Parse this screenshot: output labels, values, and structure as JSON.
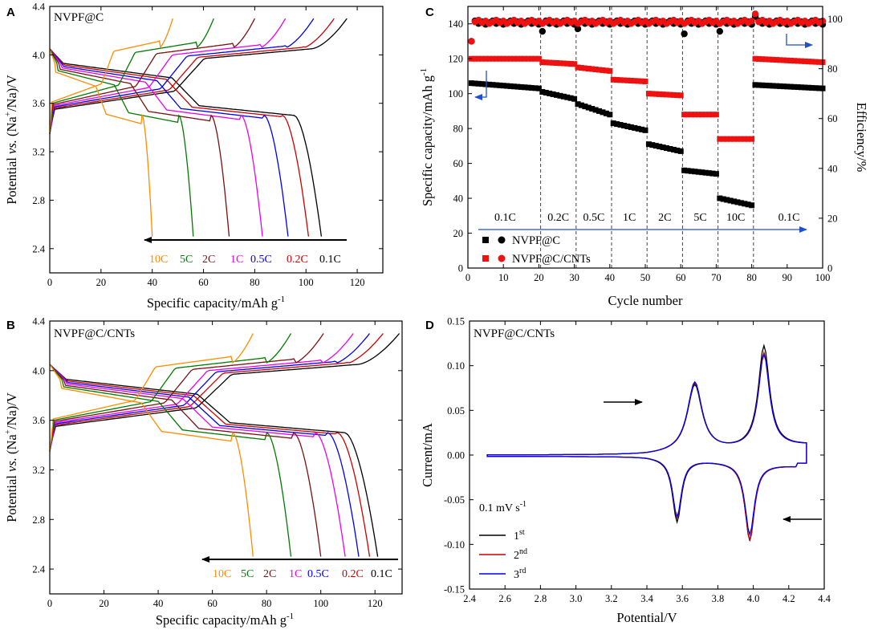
{
  "panels": {
    "A": {
      "label": "A",
      "sample": "NVPF@C",
      "xlabel_pre": "Specific capacity/mAh g",
      "xlabel_sup": "-1",
      "ylabel_pre": "Potential ",
      "ylabel_vs": "vs.",
      "ylabel_mid": " (Na",
      "ylabel_sup": "+",
      "ylabel_post": "/Na)/V"
    },
    "B": {
      "label": "B",
      "sample": "NVPF@C/CNTs",
      "xlabel_pre": "Specific capacity/mAh g",
      "xlabel_sup": "-1",
      "ylabel_pre": "Potential ",
      "ylabel_vs": "vs.",
      "ylabel_mid": " (Na",
      "ylabel_sup": "+",
      "ylabel_post": "/Na)/V"
    },
    "C": {
      "label": "C",
      "xlabel": "Cycle number",
      "ylabel_pre": "Specific capacity/mAh g",
      "ylabel_sup": "-1",
      "ylabel2": "Efficiency/%",
      "legend": [
        "NVPF@C",
        "NVPF@C/CNTs"
      ]
    },
    "D": {
      "label": "D",
      "sample": "NVPF@C/CNTs",
      "xlabel": "Potential/V",
      "ylabel": "Current/mA",
      "scan_rate_pre": "0.1 mV s",
      "scan_rate_sup": "-1",
      "legend": [
        {
          "n": "1",
          "sup": "st"
        },
        {
          "n": "2",
          "sup": "nd"
        },
        {
          "n": "3",
          "sup": "rd"
        }
      ]
    }
  },
  "colors": {
    "0.1C": "#000000",
    "0.2C": "#cc0000",
    "0.5C": "#0000ee",
    "1C": "#ee00ee",
    "2C": "#7a1010",
    "5C": "#007a00",
    "10C": "#ff8c00",
    "arrow_blue": "#1f4fd0",
    "red": "#ee1111"
  },
  "chart_data": [
    {
      "id": "A",
      "type": "line",
      "title": "NVPF@C",
      "xlabel": "Specific capacity/mAh g-1",
      "ylabel": "Potential vs. (Na+/Na)/V",
      "xlim": [
        0,
        130
      ],
      "ylim": [
        2.2,
        4.4
      ],
      "xticks": [
        0,
        20,
        40,
        60,
        80,
        100,
        120
      ],
      "yticks": [
        2.4,
        2.8,
        3.2,
        3.6,
        4.0,
        4.4
      ],
      "rate_labels": [
        "10C",
        "5C",
        "2C",
        "1C",
        "0.5C",
        "0.2C",
        "0.1C"
      ],
      "series": [
        {
          "name": "0.1C",
          "charge_cap": 116,
          "discharge_cap": 106
        },
        {
          "name": "0.2C",
          "charge_cap": 111,
          "discharge_cap": 101
        },
        {
          "name": "0.5C",
          "charge_cap": 103,
          "discharge_cap": 93
        },
        {
          "name": "1C",
          "charge_cap": 92,
          "discharge_cap": 83
        },
        {
          "name": "2C",
          "charge_cap": 80,
          "discharge_cap": 70
        },
        {
          "name": "5C",
          "charge_cap": 64,
          "discharge_cap": 56
        },
        {
          "name": "10C",
          "charge_cap": 48,
          "discharge_cap": 40
        }
      ]
    },
    {
      "id": "B",
      "type": "line",
      "title": "NVPF@C/CNTs",
      "xlabel": "Specific capacity/mAh g-1",
      "ylabel": "Potential vs. (Na+/Na)/V",
      "xlim": [
        0,
        130
      ],
      "ylim": [
        2.2,
        4.4
      ],
      "xticks": [
        0,
        20,
        40,
        60,
        80,
        100,
        120
      ],
      "yticks": [
        2.4,
        2.8,
        3.2,
        3.6,
        4.0,
        4.4
      ],
      "rate_labels": [
        "10C",
        "5C",
        "2C",
        "1C",
        "0.5C",
        "0.2C",
        "0.1C"
      ],
      "series": [
        {
          "name": "0.1C",
          "charge_cap": 129,
          "discharge_cap": 121
        },
        {
          "name": "0.2C",
          "charge_cap": 123,
          "discharge_cap": 118
        },
        {
          "name": "0.5C",
          "charge_cap": 118,
          "discharge_cap": 114
        },
        {
          "name": "1C",
          "charge_cap": 112,
          "discharge_cap": 109
        },
        {
          "name": "2C",
          "charge_cap": 101,
          "discharge_cap": 100
        },
        {
          "name": "5C",
          "charge_cap": 89,
          "discharge_cap": 89
        },
        {
          "name": "10C",
          "charge_cap": 75,
          "discharge_cap": 75
        }
      ]
    },
    {
      "id": "C",
      "type": "scatter",
      "xlabel": "Cycle number",
      "ylabel": "Specific capacity/mAh g-1",
      "ylabel2": "Efficiency/%",
      "xlim": [
        0,
        100
      ],
      "ylim": [
        0,
        150
      ],
      "y2lim": [
        0,
        105
      ],
      "xticks": [
        0,
        10,
        20,
        30,
        40,
        50,
        60,
        70,
        80,
        90,
        100
      ],
      "yticks": [
        0,
        20,
        40,
        60,
        80,
        100,
        120,
        140
      ],
      "y2ticks": [
        0,
        20,
        40,
        60,
        80,
        100
      ],
      "segments": [
        {
          "label": "0.1C",
          "start": 1,
          "end": 20
        },
        {
          "label": "0.2C",
          "start": 21,
          "end": 30
        },
        {
          "label": "0.5C",
          "start": 31,
          "end": 40
        },
        {
          "label": "1C",
          "start": 41,
          "end": 50
        },
        {
          "label": "2C",
          "start": 51,
          "end": 60
        },
        {
          "label": "5C",
          "start": 61,
          "end": 70
        },
        {
          "label": "10C",
          "start": 71,
          "end": 80
        },
        {
          "label": "0.1C",
          "start": 81,
          "end": 100
        }
      ],
      "series": [
        {
          "name": "NVPF@C capacity",
          "axis": "left",
          "marker": "square",
          "color": "#000000",
          "seg_capacity_start": [
            106,
            101,
            94,
            83,
            71,
            56,
            40,
            105
          ],
          "seg_capacity_end": [
            103,
            97,
            88,
            79,
            67,
            54,
            36,
            103
          ]
        },
        {
          "name": "NVPF@C/CNTs capacity",
          "axis": "left",
          "marker": "square",
          "color": "#ee1111",
          "seg_capacity_start": [
            120,
            118,
            115,
            108,
            100,
            88,
            74,
            120
          ],
          "seg_capacity_end": [
            120,
            117,
            113,
            107,
            99,
            88,
            74,
            118
          ]
        },
        {
          "name": "NVPF@C efficiency",
          "axis": "right",
          "marker": "circle",
          "color": "#000000",
          "typical": 98.5,
          "first": 91,
          "dips": [
            [
              21,
              95
            ],
            [
              31,
              96
            ],
            [
              61,
              94
            ],
            [
              71,
              95
            ],
            [
              81,
              101
            ]
          ]
        },
        {
          "name": "NVPF@C/CNTs efficiency",
          "axis": "right",
          "marker": "circle",
          "color": "#ee1111",
          "typical": 98.8,
          "first": 91,
          "dips": [
            [
              81,
              102
            ]
          ]
        }
      ]
    },
    {
      "id": "D",
      "type": "line",
      "title": "NVPF@C/CNTs",
      "xlabel": "Potential/V",
      "ylabel": "Current/mA",
      "xlim": [
        2.4,
        4.4
      ],
      "ylim": [
        -0.15,
        0.15
      ],
      "xticks": [
        2.4,
        2.6,
        2.8,
        3.0,
        3.2,
        3.4,
        3.6,
        3.8,
        4.0,
        4.2,
        4.4
      ],
      "yticks": [
        -0.15,
        -0.1,
        -0.05,
        0.0,
        0.05,
        0.1,
        0.15
      ],
      "scan_rate": "0.1 mV s-1",
      "series": [
        {
          "name": "1st",
          "color": "#000000",
          "anodic_peaks": [
            [
              3.67,
              0.085
            ],
            [
              4.06,
              0.124
            ]
          ],
          "cathodic_peaks": [
            [
              3.57,
              -0.083
            ],
            [
              3.98,
              -0.099
            ]
          ]
        },
        {
          "name": "2nd",
          "color": "#cc0000",
          "anodic_peaks": [
            [
              3.67,
              0.087
            ],
            [
              4.06,
              0.116
            ]
          ],
          "cathodic_peaks": [
            [
              3.57,
              -0.078
            ],
            [
              3.98,
              -0.098
            ]
          ]
        },
        {
          "name": "3rd",
          "color": "#0000ee",
          "anodic_peaks": [
            [
              3.67,
              0.088
            ],
            [
              4.06,
              0.114
            ]
          ],
          "cathodic_peaks": [
            [
              3.57,
              -0.077
            ],
            [
              3.98,
              -0.092
            ]
          ]
        }
      ]
    }
  ]
}
